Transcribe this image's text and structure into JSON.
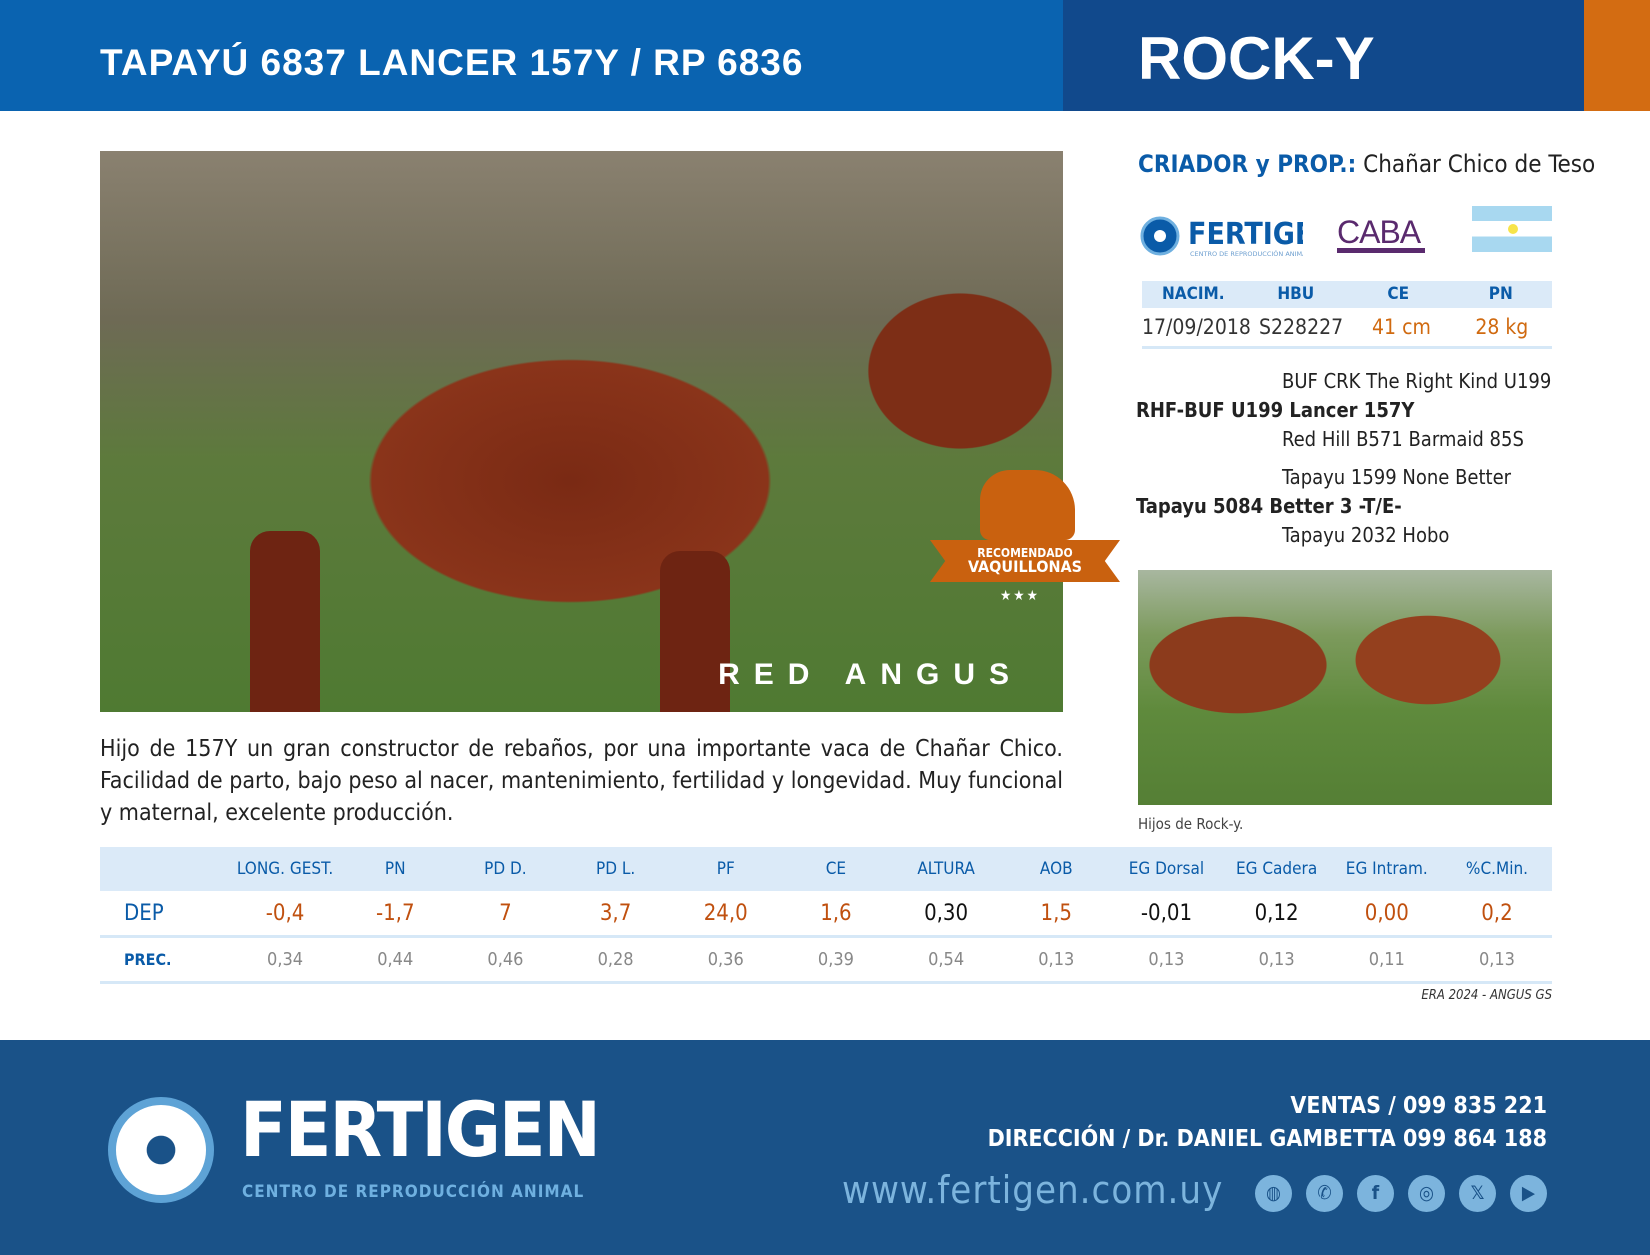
{
  "header": {
    "title": "TAPAYÚ 6837 LANCER 157Y / RP 6836",
    "name": "ROCK-Y"
  },
  "photo": {
    "breed_overlay": "RED ANGUS",
    "badge_line1": "RECOMENDADO",
    "badge_line2": "VAQUILLONAS",
    "badge_stars": "★★★"
  },
  "breeder": {
    "label": "CRIADOR y PROP.:",
    "value": "Chañar Chico de Teso"
  },
  "logos": {
    "fertigen": "FERTIGEN",
    "fertigen_sub": "CENTRO DE REPRODUCCIÓN ANIMAL",
    "caba": "CABA"
  },
  "info": {
    "headers": [
      "NACIM.",
      "HBU",
      "CE",
      "PN"
    ],
    "values": [
      "17/09/2018",
      "S228227",
      "41 cm",
      "28 kg"
    ]
  },
  "pedigree": {
    "sire_sire": "BUF CRK The Right Kind U199",
    "sire": "RHF-BUF U199 Lancer 157Y",
    "sire_dam": "Red Hill B571 Barmaid 85S",
    "dam_sire": "Tapayu 1599 None Better",
    "dam": "Tapayu 5084 Better 3 -T/E-",
    "dam_dam": "Tapayu 2032 Hobo"
  },
  "offspring_caption": "Hijos de Rock-y.",
  "description": "Hijo de 157Y un gran constructor de rebaños, por una  importante vaca de Chañar Chico. Facilidad de parto, bajo peso al nacer, mantenimiento, fertilidad y longevidad. Muy funcional y maternal, excelente producción.",
  "epd_table": {
    "columns": [
      "LONG. GEST.",
      "PN",
      "PD D.",
      "PD L.",
      "PF",
      "CE",
      "ALTURA",
      "AOB",
      "EG Dorsal",
      "EG Cadera",
      "EG Intram.",
      "%C.Min."
    ],
    "dep_label": "DEP",
    "dep": [
      "-0,4",
      "-1,7",
      "7",
      "3,7",
      "24,0",
      "1,6",
      "0,30",
      "1,5",
      "-0,01",
      "0,12",
      "0,00",
      "0,2"
    ],
    "dep_colors": [
      "#c0500f",
      "#c0500f",
      "#c0500f",
      "#c0500f",
      "#c0500f",
      "#c0500f",
      "#111111",
      "#c0500f",
      "#111111",
      "#111111",
      "#c0500f",
      "#c0500f"
    ],
    "prec_label": "PREC.",
    "prec": [
      "0,34",
      "0,44",
      "0,46",
      "0,28",
      "0,36",
      "0,39",
      "0,54",
      "0,13",
      "0,13",
      "0,13",
      "0,11",
      "0,13"
    ],
    "source": "ERA 2024 - ANGUS GS"
  },
  "footer": {
    "brand": "FERTIGEN",
    "brand_sub": "CENTRO DE REPRODUCCIÓN ANIMAL",
    "ventas": "VENTAS / 099 835 221",
    "direccion": "DIRECCIÓN / Dr. DANIEL GAMBETTA 099 864 188",
    "website": "www.fertigen.com.uy",
    "social_icons": [
      "globe-icon",
      "whatsapp-icon",
      "facebook-icon",
      "instagram-icon",
      "x-icon",
      "youtube-icon"
    ]
  },
  "colors": {
    "primary_blue": "#0a63b0",
    "dark_blue": "#11498c",
    "orange": "#d36c12",
    "footer_blue": "#1a5288"
  }
}
